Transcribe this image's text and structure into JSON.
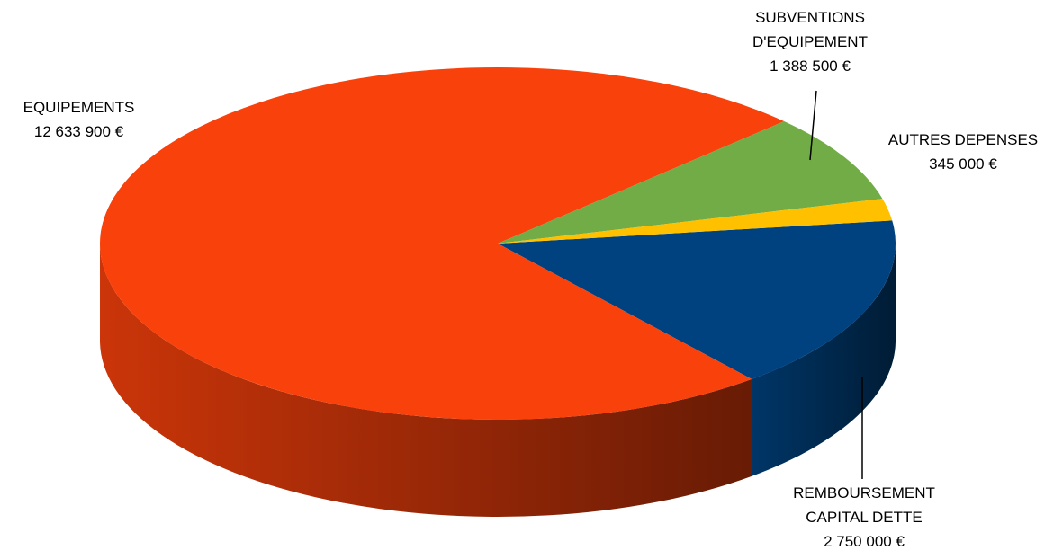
{
  "chart_data": {
    "type": "pie",
    "title": "",
    "style": "3d",
    "slices": [
      {
        "id": "remboursement",
        "label_lines": [
          "REMBOURSEMENT",
          "CAPITAL DETTE"
        ],
        "value_label": "2 750 000 €",
        "value": 2750000,
        "color": "#00427f"
      },
      {
        "id": "equipements",
        "label_lines": [
          "EQUIPEMENTS"
        ],
        "value_label": "12 633 900 €",
        "value": 12633900,
        "color": "#f8410b"
      },
      {
        "id": "subventions",
        "label_lines": [
          "SUBVENTIONS",
          "D'EQUIPEMENT"
        ],
        "value_label": "1 388 500 €",
        "value": 1388500,
        "color": "#71ac46"
      },
      {
        "id": "autres",
        "label_lines": [
          "AUTRES DEPENSES"
        ],
        "value_label": "345 000 €",
        "value": 345000,
        "color": "#ffc000"
      }
    ]
  }
}
